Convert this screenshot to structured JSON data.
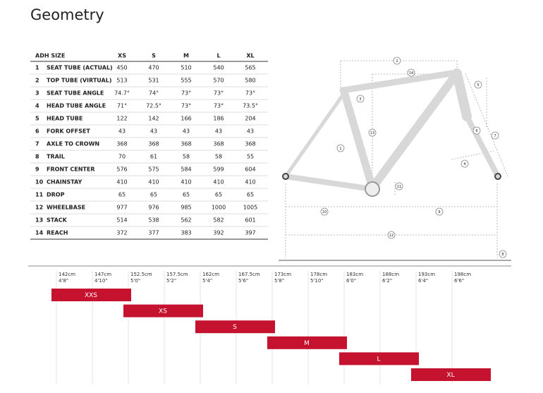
{
  "header": {
    "title": "Geometry"
  },
  "table": {
    "header": [
      "ADH SIZE",
      "XS",
      "S",
      "M",
      "L",
      "XL"
    ],
    "rows": [
      [
        1,
        "SEAT TUBE (ACTUAL)",
        450,
        470,
        510,
        540,
        565
      ],
      [
        2,
        "TOP TUBE (VIRTUAL)",
        513,
        531,
        555,
        570,
        580
      ],
      [
        3,
        "SEAT TUBE ANGLE",
        "74.7°",
        "74°",
        "73°",
        "73°",
        "73°"
      ],
      [
        4,
        "HEAD TUBE ANGLE",
        "71°",
        "72.5°",
        "73°",
        "73°",
        "73.5°"
      ],
      [
        5,
        "HEAD TUBE",
        122,
        142,
        166,
        186,
        204
      ],
      [
        6,
        "FORK OFFSET",
        43,
        43,
        43,
        43,
        43
      ],
      [
        7,
        "AXLE TO CROWN",
        368,
        368,
        368,
        368,
        368
      ],
      [
        8,
        "TRAIL",
        70,
        61,
        58,
        58,
        55
      ],
      [
        9,
        "FRONT CENTER",
        576,
        575,
        584,
        599,
        604
      ],
      [
        10,
        "CHAINSTAY",
        410,
        410,
        410,
        410,
        410
      ],
      [
        11,
        "DROP",
        65,
        65,
        65,
        65,
        65
      ],
      [
        12,
        "WHEELBASE",
        977,
        976,
        985,
        1000,
        1005
      ],
      [
        13,
        "STACK",
        514,
        538,
        562,
        582,
        601
      ],
      [
        14,
        "REACH",
        372,
        377,
        383,
        392,
        397
      ]
    ]
  },
  "diagram": {
    "markers": [
      "1",
      "2",
      "3",
      "4",
      "5",
      "6",
      "7",
      "8",
      "9",
      "10",
      "11",
      "12",
      "13",
      "14"
    ]
  },
  "size_chart": {
    "heights": [
      {
        "cm": "142cm",
        "ft": "4'8\""
      },
      {
        "cm": "147cm",
        "ft": "4'10\""
      },
      {
        "cm": "152.5cm",
        "ft": "5'0\""
      },
      {
        "cm": "157.5cm",
        "ft": "5'2\""
      },
      {
        "cm": "162cm",
        "ft": "5'4\""
      },
      {
        "cm": "167.5cm",
        "ft": "5'6\""
      },
      {
        "cm": "173cm",
        "ft": "5'8\""
      },
      {
        "cm": "178cm",
        "ft": "5'10\""
      },
      {
        "cm": "183cm",
        "ft": "6'0\""
      },
      {
        "cm": "188cm",
        "ft": "6'2\""
      },
      {
        "cm": "193cm",
        "ft": "6'4\""
      },
      {
        "cm": "198cm",
        "ft": "6'6\""
      }
    ],
    "sizes": [
      "XXS",
      "XS",
      "S",
      "M",
      "L",
      "XL"
    ]
  }
}
